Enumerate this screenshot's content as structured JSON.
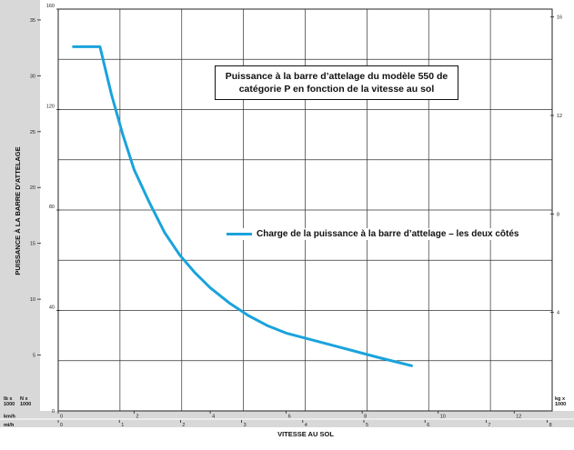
{
  "chart_data": {
    "type": "line",
    "title": "Puissance à la barre d’attelage du modèle 550 de catégorie P en fonction de la vitesse au sol",
    "ylabel": "PUISSANCE À LA BARRE D’ATTELAGE",
    "xlabel": "VITESSE AU SOL",
    "grid": true,
    "legend_position": "right",
    "series": [
      {
        "name": "Charge de la puissance à la barre d’attelage – les deux côtés",
        "color": "#1aa3dc",
        "x_kmh": [
          0.4,
          1.1,
          1.4,
          1.7,
          2.0,
          2.4,
          2.8,
          3.2,
          3.6,
          4.0,
          4.5,
          5.0,
          5.5,
          6.0,
          7.0,
          8.0,
          8.5,
          9.3
        ],
        "y_kN": [
          145,
          145,
          126,
          110,
          96,
          83,
          71,
          62,
          55,
          49,
          43,
          38,
          34,
          31,
          27,
          23,
          21,
          18
        ]
      }
    ],
    "axes": {
      "kmh": {
        "unit_label": "km/h",
        "range": [
          0,
          13
        ],
        "ticks": [
          "0",
          "2",
          "4",
          "6",
          "8",
          "10",
          "12"
        ]
      },
      "mih": {
        "unit_label": "mi/h",
        "range": [
          0,
          8.08
        ],
        "ticks": [
          "0",
          "1",
          "2",
          "3",
          "4",
          "5",
          "6",
          "7",
          "8"
        ]
      },
      "kN": {
        "unit_label": [
          "N x",
          "1000"
        ],
        "range": [
          0,
          160
        ],
        "ticks": [
          "0",
          "40",
          "80",
          "120",
          "160"
        ]
      },
      "lb": {
        "unit_label": [
          "lb x",
          "1000"
        ],
        "range": [
          0,
          35.97
        ],
        "ticks": [
          "5",
          "10",
          "15",
          "20",
          "25",
          "30",
          "35"
        ]
      },
      "kgf": {
        "unit_label": [
          "kg x",
          "1000"
        ],
        "range": [
          0,
          16.32
        ],
        "ticks": [
          "4",
          "8",
          "12",
          "16"
        ]
      }
    }
  }
}
